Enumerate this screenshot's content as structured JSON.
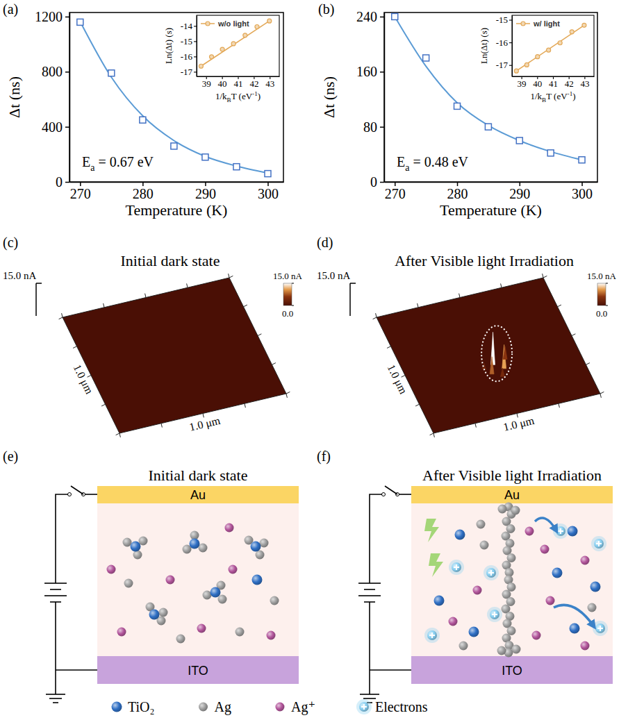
{
  "chart_data": [
    {
      "panel_label": "(a)",
      "type": "scatter",
      "x_label": "Temperature (K)",
      "y_label": "Δt (ns)",
      "annotation": [
        {
          "text": "E"
        },
        {
          "text": "a",
          "sub": true
        },
        {
          "text": " = 0.67 eV"
        }
      ],
      "xlim": [
        268.3,
        302.5
      ],
      "ylim": [
        0,
        1230
      ],
      "xticks": [
        270,
        280,
        290,
        300
      ],
      "yticks": [
        0,
        400,
        800,
        1200
      ],
      "series": [
        {
          "type": "line",
          "color": "#5b9bd5",
          "x": [
            270,
            275,
            280,
            285,
            290,
            295,
            300
          ],
          "values": [
            1165,
            760,
            480,
            300,
            185,
            115,
            65
          ]
        },
        {
          "type": "scatter",
          "marker": "square",
          "color": "#4472c4",
          "x": [
            270,
            275,
            280,
            285,
            290,
            295,
            300
          ],
          "values": [
            1160,
            790,
            450,
            260,
            180,
            110,
            60
          ]
        }
      ]
    },
    {
      "type": "scatter",
      "x_label": [
        {
          "text": "1/k"
        },
        {
          "text": "B",
          "sub": true
        },
        {
          "text": "T (eV"
        },
        {
          "text": "-1",
          "sup": true
        },
        {
          "text": ")"
        }
      ],
      "y_label": "Ln(Δt) (s)",
      "legend": "upper left",
      "xlim": [
        38.4,
        43.6
      ],
      "ylim": [
        -17.3,
        -13.3
      ],
      "xticks": [
        39,
        40,
        41,
        42,
        43
      ],
      "yticks": [
        -17,
        -16,
        -15,
        -14
      ],
      "series": [
        {
          "type": "line",
          "color": "#e3a857",
          "x": [
            38.68,
            42.98
          ],
          "values": [
            -16.63,
            -13.67
          ]
        },
        {
          "type": "scatter",
          "name": "w/o light",
          "marker": "circle",
          "color": "#e3a857",
          "x": [
            38.68,
            39.34,
            40.02,
            40.72,
            41.45,
            42.2,
            42.98
          ],
          "values": [
            -16.63,
            -16.02,
            -15.53,
            -15.16,
            -14.61,
            -14.05,
            -13.67
          ]
        }
      ]
    },
    {
      "panel_label": "(b)",
      "type": "scatter",
      "x_label": "Temperature (K)",
      "y_label": "Δt (ns)",
      "annotation": [
        {
          "text": "E"
        },
        {
          "text": "a",
          "sub": true
        },
        {
          "text": " = 0.48 eV"
        }
      ],
      "xlim": [
        268.3,
        302.5
      ],
      "ylim": [
        0,
        246
      ],
      "xticks": [
        270,
        280,
        290,
        300
      ],
      "yticks": [
        0,
        80,
        160,
        240
      ],
      "series": [
        {
          "type": "line",
          "color": "#5b9bd5",
          "x": [
            270,
            275,
            280,
            285,
            290,
            295,
            300
          ],
          "values": [
            240,
            168,
            115,
            82,
            60,
            44,
            32
          ]
        },
        {
          "type": "scatter",
          "marker": "square",
          "color": "#4472c4",
          "x": [
            270,
            275,
            280,
            285,
            290,
            295,
            300
          ],
          "values": [
            240,
            180,
            110,
            80,
            60,
            42,
            32
          ]
        }
      ]
    },
    {
      "type": "scatter",
      "x_label": [
        {
          "text": "1/k"
        },
        {
          "text": "B",
          "sub": true
        },
        {
          "text": "T (eV"
        },
        {
          "text": "-1",
          "sup": true
        },
        {
          "text": ")"
        }
      ],
      "y_label": "Ln(Δt) (s)",
      "legend": "upper left",
      "xlim": [
        38.4,
        43.6
      ],
      "ylim": [
        -17.5,
        -14.8
      ],
      "xticks": [
        39,
        40,
        41,
        42,
        43
      ],
      "yticks": [
        -17,
        -16,
        -15
      ],
      "series": [
        {
          "type": "line",
          "color": "#e3a857",
          "x": [
            38.68,
            42.98
          ],
          "values": [
            -17.26,
            -15.24
          ]
        },
        {
          "type": "scatter",
          "name": "w/ light",
          "marker": "circle",
          "color": "#e3a857",
          "x": [
            38.68,
            39.34,
            40.02,
            40.72,
            41.45,
            42.2,
            42.98
          ],
          "values": [
            -17.26,
            -16.99,
            -16.63,
            -16.34,
            -16.02,
            -15.53,
            -15.24
          ]
        }
      ]
    }
  ],
  "maps": [
    {
      "panel_label": "(c)",
      "title": "Initial dark state",
      "z_label": {
        "value": 15,
        "label": "15.0 nA"
      },
      "x_label": "1.0 μm",
      "y_label": "1.0 μm",
      "colorbar": {
        "range": [
          0,
          15
        ],
        "ticks": [
          {
            "value": 15,
            "label": "15.0 nA"
          },
          {
            "value": 0,
            "label": "0.0"
          }
        ]
      }
    },
    {
      "panel_label": "(d)",
      "title": "After Visible light Irradiation",
      "z_label": {
        "value": 15,
        "label": "15.0 nA"
      },
      "x_label": "1.0 μm",
      "y_label": "1.0 μm",
      "colorbar": {
        "range": [
          0,
          15
        ],
        "ticks": [
          {
            "value": 15,
            "label": "15.0 nA"
          },
          {
            "value": 0,
            "label": "0.0"
          }
        ]
      },
      "peaks": [
        15,
        11,
        8,
        6,
        4,
        3
      ]
    }
  ],
  "schematics": [
    {
      "panel_label": "(e)",
      "title": "Initial dark state",
      "top_electrode": "Au",
      "bottom_electrode": "ITO"
    },
    {
      "panel_label": "(f)",
      "title": "After Visible light Irradiation",
      "top_electrode": "Au",
      "bottom_electrode": "ITO"
    }
  ],
  "legend": [
    {
      "label": "TiO₂",
      "color": "#2f6fc4"
    },
    {
      "label": "Ag",
      "color": "#9e9e9e"
    },
    {
      "label": "Ag⁺",
      "color": "#b2559b"
    },
    {
      "label": "Electrons",
      "color": "#8ad0f2"
    }
  ]
}
